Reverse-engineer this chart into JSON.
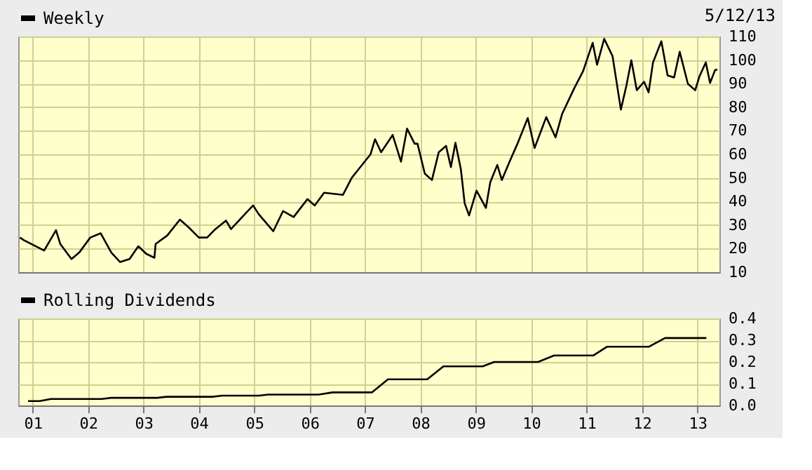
{
  "chart_data": [
    {
      "type": "line",
      "annotations": [
        "5/12/13"
      ],
      "legend": "top left",
      "grid": true,
      "marker": "none",
      "line_style": "solid",
      "tick_labels": "y",
      "xlim": [
        "2000-09-27",
        "2013-05-26"
      ],
      "xticks": [
        {
          "value": "2001-01-01",
          "label": null
        },
        {
          "value": "2002-01-01",
          "label": null
        },
        {
          "value": "2003-01-01",
          "label": null
        },
        {
          "value": "2004-01-01",
          "label": null
        },
        {
          "value": "2005-01-01",
          "label": null
        },
        {
          "value": "2006-01-01",
          "label": null
        },
        {
          "value": "2007-01-01",
          "label": null
        },
        {
          "value": "2008-01-01",
          "label": null
        },
        {
          "value": "2009-01-01",
          "label": null
        },
        {
          "value": "2010-01-01",
          "label": null
        },
        {
          "value": "2011-01-01",
          "label": null
        },
        {
          "value": "2012-01-01",
          "label": null
        },
        {
          "value": "2013-01-01",
          "label": null
        }
      ],
      "ylim": [
        10,
        110
      ],
      "yticks": [
        10,
        20,
        30,
        40,
        50,
        60,
        70,
        80,
        90,
        100,
        110
      ],
      "series": [
        {
          "name": "Weekly",
          "color": "#000000",
          "x": [
            "2000-10-08",
            "2000-11-03",
            "2001-03-17",
            "2001-06-03",
            "2001-07-01",
            "2001-09-13",
            "2001-11-03",
            "2002-01-15",
            "2002-03-25",
            "2002-06-03",
            "2002-07-31",
            "2002-10-01",
            "2002-11-28",
            "2003-01-19",
            "2003-03-14",
            "2003-03-22",
            "2003-06-07",
            "2003-08-29",
            "2003-10-23",
            "2004-01-01",
            "2004-02-25",
            "2004-04-13",
            "2004-06-28",
            "2004-07-31",
            "2004-10-30",
            "2004-12-24",
            "2005-01-30",
            "2005-05-06",
            "2005-07-09",
            "2005-09-17",
            "2005-12-17",
            "2006-02-03",
            "2006-04-06",
            "2006-08-08",
            "2006-10-05",
            "2007-02-06",
            "2007-03-08",
            "2007-04-17",
            "2007-07-02",
            "2007-08-26",
            "2007-10-05",
            "2007-11-24",
            "2007-12-13",
            "2008-01-30",
            "2008-03-17",
            "2008-05-01",
            "2008-06-18",
            "2008-07-20",
            "2008-08-19",
            "2008-09-24",
            "2008-10-19",
            "2008-11-17",
            "2009-01-05",
            "2009-03-08",
            "2009-04-06",
            "2009-05-22",
            "2009-06-21",
            "2009-08-08",
            "2009-10-08",
            "2009-12-09",
            "2010-01-23",
            "2010-04-10",
            "2010-06-10",
            "2010-07-24",
            "2010-10-12",
            "2010-12-09",
            "2011-02-10",
            "2011-03-11",
            "2011-04-27",
            "2011-06-21",
            "2011-08-15",
            "2011-09-20",
            "2011-10-23",
            "2011-11-28",
            "2012-01-15",
            "2012-02-14",
            "2012-03-14",
            "2012-05-08",
            "2012-06-18",
            "2012-07-31",
            "2012-09-06",
            "2012-10-30",
            "2012-12-17",
            "2013-01-15",
            "2013-02-25",
            "2013-03-25",
            "2013-04-27",
            "2013-05-12"
          ],
          "values": [
            24.7,
            23.6,
            19.2,
            27.8,
            22,
            15.6,
            18.3,
            24.7,
            26.5,
            18.3,
            14.3,
            15.6,
            21,
            17.8,
            16.1,
            22,
            25.6,
            32.3,
            29.2,
            24.7,
            24.7,
            27.9,
            31.9,
            28.3,
            34.6,
            38.3,
            34.6,
            27.4,
            35.9,
            33.4,
            41,
            38.3,
            43.7,
            42.8,
            50,
            60,
            66.4,
            60.9,
            68.2,
            56.9,
            70.9,
            64.5,
            64.5,
            51.8,
            49.1,
            60.9,
            63.6,
            54.6,
            64.9,
            53.6,
            39.2,
            34.1,
            44.6,
            37.3,
            48.2,
            55.5,
            49.1,
            56.4,
            65.4,
            75.4,
            62.7,
            75.8,
            67.2,
            77.2,
            88.1,
            95.3,
            107.3,
            98,
            109,
            101.7,
            79,
            89,
            99.9,
            87.2,
            90.8,
            86.3,
            99,
            108,
            93.5,
            92.6,
            103.5,
            89.9,
            87.2,
            93.2,
            99,
            90.3,
            95.7,
            96
          ]
        }
      ]
    },
    {
      "type": "line",
      "legend": "top left",
      "grid": true,
      "marker": "none",
      "line_style": "solid",
      "xlim": [
        "2000-09-27",
        "2013-05-26"
      ],
      "xticks": [
        {
          "value": "2001-01-01",
          "label": "01"
        },
        {
          "value": "2002-01-01",
          "label": "02"
        },
        {
          "value": "2003-01-01",
          "label": "03"
        },
        {
          "value": "2004-01-01",
          "label": "04"
        },
        {
          "value": "2005-01-01",
          "label": "05"
        },
        {
          "value": "2006-01-01",
          "label": "06"
        },
        {
          "value": "2007-01-01",
          "label": "07"
        },
        {
          "value": "2008-01-01",
          "label": "08"
        },
        {
          "value": "2009-01-01",
          "label": "09"
        },
        {
          "value": "2010-01-01",
          "label": "10"
        },
        {
          "value": "2011-01-01",
          "label": "11"
        },
        {
          "value": "2012-01-01",
          "label": "12"
        },
        {
          "value": "2013-01-01",
          "label": "13"
        }
      ],
      "ylim": [
        0,
        0.4
      ],
      "yticks": [
        {
          "value": 0,
          "label": "0.0"
        },
        {
          "value": 0.1,
          "label": "0.1"
        },
        {
          "value": 0.2,
          "label": "0.2"
        },
        {
          "value": 0.3,
          "label": "0.3"
        },
        {
          "value": 0.4,
          "label": "0.4"
        }
      ],
      "series": [
        {
          "name": "Rolling Dividends",
          "color": "#000000",
          "x": [
            "2000-12-01",
            "2001-02-15",
            "2001-05-01",
            "2002-04-01",
            "2002-06-01",
            "2003-04-01",
            "2003-06-01",
            "2004-04-01",
            "2004-06-01",
            "2005-02-01",
            "2005-04-01",
            "2006-03-01",
            "2006-06-01",
            "2007-02-15",
            "2007-06-01",
            "2008-02-15",
            "2008-06-01",
            "2009-02-15",
            "2009-05-01",
            "2010-02-15",
            "2010-06-01",
            "2011-02-15",
            "2011-05-15",
            "2012-02-15",
            "2012-06-01",
            "2013-03-01"
          ],
          "values": [
            0.02,
            0.02,
            0.03,
            0.03,
            0.035,
            0.035,
            0.04,
            0.04,
            0.045,
            0.045,
            0.05,
            0.05,
            0.06,
            0.06,
            0.12,
            0.12,
            0.18,
            0.18,
            0.2,
            0.2,
            0.23,
            0.23,
            0.27,
            0.27,
            0.31,
            0.31
          ]
        }
      ]
    }
  ]
}
